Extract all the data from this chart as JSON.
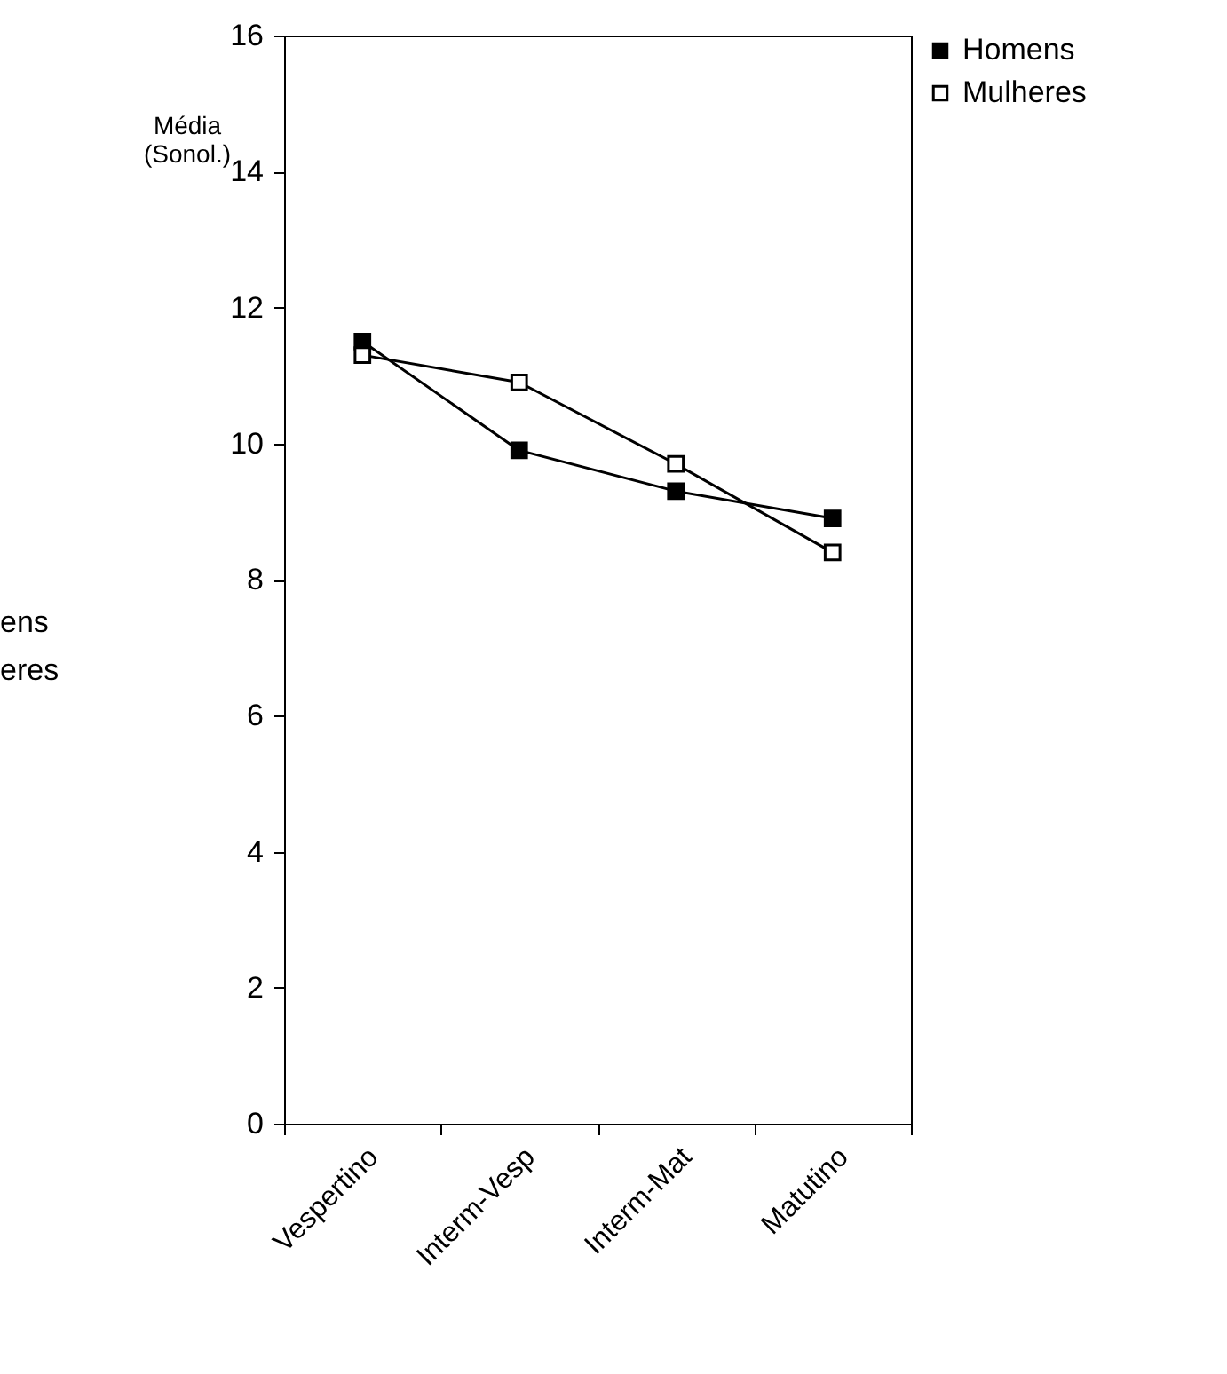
{
  "chart_data": {
    "type": "line",
    "ylabel": "Média (Sonol.)",
    "categories": [
      "Vespertino",
      "Interm-Vesp",
      "Interm-Mat",
      "Matutino"
    ],
    "series": [
      {
        "name": "Homens",
        "color": "#000000",
        "values": [
          11.5,
          9.9,
          9.3,
          8.9
        ]
      },
      {
        "name": "Mulheres",
        "color": "#000000",
        "values": [
          11.3,
          10.9,
          9.7,
          8.4
        ]
      }
    ],
    "ylim": [
      0,
      16
    ],
    "yticks": [
      0,
      2,
      4,
      6,
      8,
      10,
      12,
      14,
      16
    ],
    "grid": false,
    "legend": "right",
    "marker": "square",
    "line_style": "solid",
    "annotations": [
      "ens",
      "eres"
    ]
  }
}
